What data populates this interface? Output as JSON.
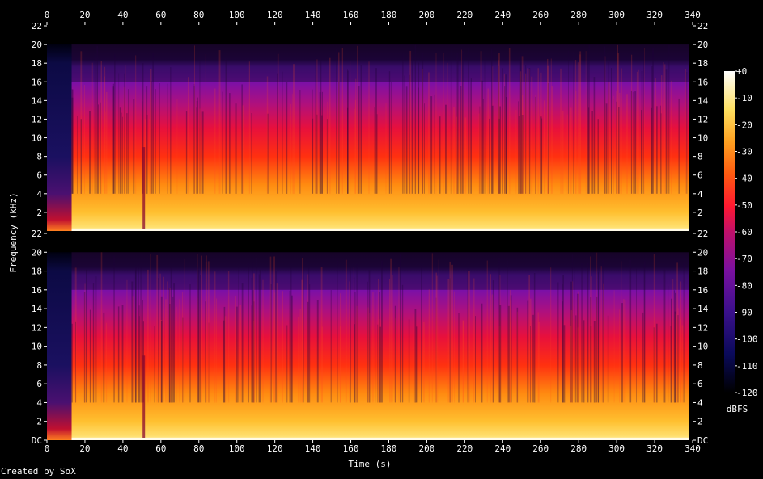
{
  "chart_data": {
    "type": "heatmap",
    "title": "",
    "xlabel": "Time (s)",
    "ylabel": "Frequency (kHz)",
    "xlim": [
      0,
      340
    ],
    "x_ticks": [
      "0",
      "20",
      "40",
      "60",
      "80",
      "100",
      "120",
      "140",
      "160",
      "180",
      "200",
      "220",
      "240",
      "260",
      "280",
      "300",
      "320",
      "340"
    ],
    "y_ticks": [
      "DC",
      "2",
      "4",
      "6",
      "8",
      "10",
      "12",
      "14",
      "16",
      "18",
      "20",
      "22"
    ],
    "ylim_khz": [
      0,
      22
    ],
    "channels": 2,
    "colorbar": {
      "label": "dBFS",
      "ticks": [
        "+0",
        "-10",
        "-20",
        "-30",
        "-40",
        "-50",
        "-60",
        "-70",
        "-80",
        "-90",
        "-100",
        "-110",
        "-120"
      ],
      "range": [
        -120,
        0
      ]
    },
    "spectral_summary": {
      "silent_intro_end_s": 13,
      "dark_gap_s": 51,
      "audio_end_s": 338,
      "bands_khz_to_dbfs": [
        [
          0,
          -18
        ],
        [
          1,
          -28
        ],
        [
          5,
          -40
        ],
        [
          9,
          -55
        ],
        [
          16,
          -70
        ],
        [
          20,
          -85
        ]
      ]
    }
  },
  "footer": {
    "credit": "Created by SoX"
  }
}
